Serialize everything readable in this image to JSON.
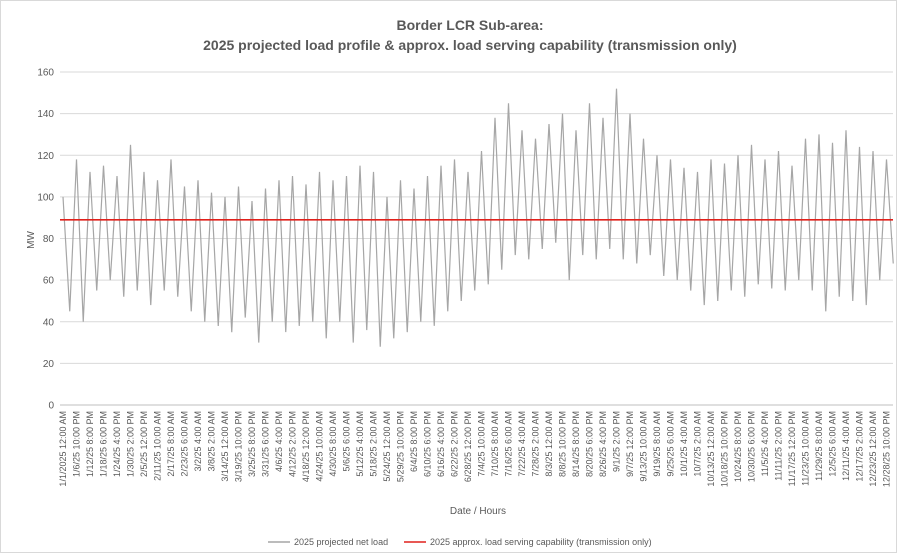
{
  "chart_data": {
    "type": "line",
    "title": "Border LCR Sub-area:",
    "subtitle": "2025 projected load profile & approx. load serving capability (transmission only)",
    "xlabel": "Date / Hours",
    "ylabel": "MW",
    "categories": [
      "1/1/2025 12:00 AM",
      null,
      "1/6/25 10:00 PM",
      null,
      "1/12/25 8:00 PM",
      null,
      "1/18/25 6:00 PM",
      null,
      "1/24/25 4:00 PM",
      null,
      "1/30/25 2:00 PM",
      null,
      "2/5/25 12:00 PM",
      null,
      "2/11/25 10:00 AM",
      null,
      "2/17/25 8:00 AM",
      null,
      "2/23/25 6:00 AM",
      null,
      "3/2/25 4:00 AM",
      null,
      "3/8/25 2:00 AM",
      null,
      "3/14/25 12:00 AM",
      null,
      "3/19/25 10:00 PM",
      null,
      "3/25/25 8:00 PM",
      null,
      "3/31/25 6:00 PM",
      null,
      "4/6/25 4:00 PM",
      null,
      "4/12/25 2:00 PM",
      null,
      "4/18/25 12:00 PM",
      null,
      "4/24/25 10:00 AM",
      null,
      "4/30/25 8:00 AM",
      null,
      "5/6/25 6:00 AM",
      null,
      "5/12/25 4:00 AM",
      null,
      "5/18/25 2:00 AM",
      null,
      "5/24/25 12:00 AM",
      null,
      "5/29/25 10:00 PM",
      null,
      "6/4/25 8:00 PM",
      null,
      "6/10/25 6:00 PM",
      null,
      "6/16/25 4:00 PM",
      null,
      "6/22/25 2:00 PM",
      null,
      "6/28/25 12:00 PM",
      null,
      "7/4/25 10:00 AM",
      null,
      "7/10/25 8:00 AM",
      null,
      "7/16/25 6:00 AM",
      null,
      "7/22/25 4:00 AM",
      null,
      "7/28/25 2:00 AM",
      null,
      "8/3/25 12:00 AM",
      null,
      "8/8/25 10:00 PM",
      null,
      "8/14/25 8:00 PM",
      null,
      "8/20/25 6:00 PM",
      null,
      "8/26/25 4:00 PM",
      null,
      "9/1/25 2:00 PM",
      null,
      "9/7/25 12:00 PM",
      null,
      "9/13/25 10:00 AM",
      null,
      "9/19/25 8:00 AM",
      null,
      "9/25/25 6:00 AM",
      null,
      "10/1/25 4:00 AM",
      null,
      "10/7/25 2:00 AM",
      null,
      "10/13/25 12:00 AM",
      null,
      "10/18/25 10:00 PM",
      null,
      "10/24/25 8:00 PM",
      null,
      "10/30/25 6:00 PM",
      null,
      "11/5/25 4:00 PM",
      null,
      "11/11/25 2:00 PM",
      null,
      "11/17/25 12:00 PM",
      null,
      "11/23/25 10:00 AM",
      null,
      "11/29/25 8:00 AM",
      null,
      "12/5/25 6:00 AM",
      null,
      "12/11/25 4:00 AM",
      null,
      "12/17/25 2:00 AM",
      null,
      "12/23/25 12:00 AM",
      null,
      "12/28/25 10:00 PM",
      null
    ],
    "series": [
      {
        "name": "2025 projected net load",
        "color": "#a6a6a6",
        "values": [
          100,
          45,
          118,
          40,
          112,
          55,
          115,
          60,
          110,
          52,
          125,
          55,
          112,
          48,
          108,
          55,
          118,
          52,
          105,
          45,
          108,
          40,
          102,
          38,
          100,
          35,
          105,
          42,
          98,
          30,
          104,
          40,
          108,
          35,
          110,
          38,
          106,
          40,
          112,
          32,
          108,
          40,
          110,
          30,
          115,
          36,
          112,
          28,
          100,
          32,
          108,
          35,
          104,
          40,
          110,
          38,
          115,
          45,
          118,
          50,
          112,
          55,
          122,
          58,
          138,
          65,
          145,
          72,
          132,
          70,
          128,
          75,
          135,
          78,
          140,
          60,
          132,
          72,
          145,
          70,
          138,
          75,
          152,
          70,
          140,
          68,
          128,
          72,
          120,
          62,
          118,
          60,
          114,
          55,
          112,
          48,
          118,
          50,
          116,
          55,
          120,
          52,
          125,
          58,
          118,
          56,
          122,
          55,
          115,
          60,
          128,
          55,
          130,
          45,
          126,
          52,
          132,
          50,
          124,
          48,
          122,
          60,
          118,
          68
        ]
      }
    ],
    "reference_line": {
      "name": "2025 approx. load serving capability (transmission only)",
      "color": "#e0201b",
      "value": 89
    },
    "ylim": [
      0,
      160
    ],
    "yticks": [
      0,
      20,
      40,
      60,
      80,
      100,
      120,
      140,
      160
    ],
    "grid": true,
    "legend": "bottom"
  }
}
